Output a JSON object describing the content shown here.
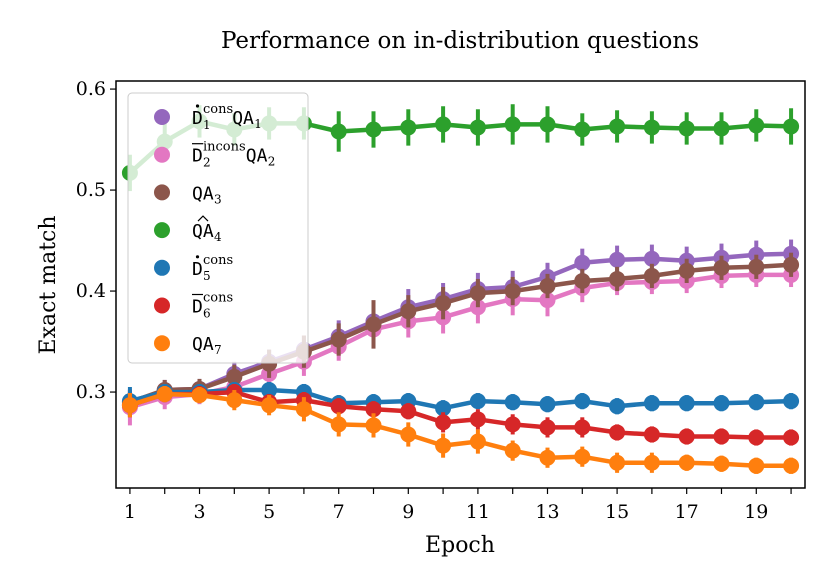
{
  "chart_data": {
    "type": "line",
    "title": "Performance on in-distribution questions",
    "xlabel": "Epoch",
    "ylabel": "Exact match",
    "x": [
      1,
      2,
      3,
      4,
      5,
      6,
      7,
      8,
      9,
      10,
      11,
      12,
      13,
      14,
      15,
      16,
      17,
      18,
      19,
      20
    ],
    "xticks": [
      "1",
      "3",
      "5",
      "7",
      "9",
      "11",
      "13",
      "15",
      "17",
      "19"
    ],
    "yticks": [
      "0.3",
      "0.4",
      "0.5",
      "0.6"
    ],
    "xlim": [
      0.6,
      20.4
    ],
    "ylim": [
      0.205,
      0.608
    ],
    "grid": false,
    "legend": "top-left",
    "series": [
      {
        "legend": {
          "base": "D",
          "accent": "dot",
          "sub": "1",
          "sup": "cons",
          "tail": "QA",
          "tail_sub": "1"
        },
        "color": "#9467bd",
        "values": [
          0.288,
          0.302,
          0.303,
          0.318,
          0.33,
          0.342,
          0.355,
          0.37,
          0.384,
          0.392,
          0.402,
          0.404,
          0.414,
          0.428,
          0.431,
          0.432,
          0.43,
          0.433,
          0.436,
          0.437
        ],
        "errors": [
          0.012,
          0.01,
          0.01,
          0.012,
          0.012,
          0.014,
          0.016,
          0.016,
          0.018,
          0.016,
          0.016,
          0.016,
          0.014,
          0.014,
          0.014,
          0.014,
          0.014,
          0.014,
          0.014,
          0.014
        ]
      },
      {
        "legend": {
          "base": "D",
          "accent": "bar",
          "sub": "2",
          "sup": "incons",
          "tail": "QA",
          "tail_sub": "2"
        },
        "color": "#e377c2",
        "values": [
          0.285,
          0.295,
          0.298,
          0.305,
          0.318,
          0.33,
          0.345,
          0.362,
          0.37,
          0.374,
          0.384,
          0.392,
          0.391,
          0.403,
          0.408,
          0.409,
          0.41,
          0.415,
          0.416,
          0.416
        ],
        "errors": [
          0.018,
          0.012,
          0.01,
          0.01,
          0.012,
          0.014,
          0.014,
          0.016,
          0.016,
          0.016,
          0.016,
          0.016,
          0.016,
          0.014,
          0.012,
          0.012,
          0.012,
          0.012,
          0.012,
          0.012
        ]
      },
      {
        "legend": {
          "base": "",
          "accent": "none",
          "sub": "",
          "sup": "",
          "tail": "QA",
          "tail_sub": "3"
        },
        "color": "#8c564b",
        "values": [
          0.29,
          0.302,
          0.303,
          0.315,
          0.328,
          0.34,
          0.352,
          0.367,
          0.38,
          0.388,
          0.398,
          0.4,
          0.405,
          0.41,
          0.412,
          0.415,
          0.42,
          0.423,
          0.424,
          0.426
        ],
        "errors": [
          0.012,
          0.01,
          0.01,
          0.012,
          0.014,
          0.016,
          0.016,
          0.024,
          0.016,
          0.016,
          0.014,
          0.014,
          0.012,
          0.012,
          0.012,
          0.012,
          0.012,
          0.012,
          0.012,
          0.012
        ]
      },
      {
        "legend": {
          "base": "",
          "accent": "hat",
          "sub": "",
          "sup": "",
          "tail": "QA",
          "tail_sub": "4"
        },
        "color": "#2ca02c",
        "values": [
          0.517,
          0.548,
          0.568,
          0.56,
          0.566,
          0.566,
          0.558,
          0.56,
          0.562,
          0.565,
          0.562,
          0.565,
          0.565,
          0.56,
          0.563,
          0.562,
          0.561,
          0.561,
          0.564,
          0.563
        ],
        "errors": [
          0.018,
          0.018,
          0.016,
          0.016,
          0.016,
          0.016,
          0.02,
          0.018,
          0.018,
          0.018,
          0.018,
          0.02,
          0.018,
          0.016,
          0.016,
          0.016,
          0.016,
          0.016,
          0.016,
          0.018
        ]
      },
      {
        "legend": {
          "base": "D",
          "accent": "dot",
          "sub": "5",
          "sup": "cons",
          "tail": "",
          "tail_sub": ""
        },
        "color": "#1f77b4",
        "values": [
          0.291,
          0.3,
          0.3,
          0.302,
          0.302,
          0.3,
          0.289,
          0.29,
          0.291,
          0.284,
          0.291,
          0.29,
          0.288,
          0.291,
          0.286,
          0.289,
          0.289,
          0.289,
          0.29,
          0.291
        ],
        "errors": [
          0.014,
          0.008,
          0.008,
          0.008,
          0.008,
          0.008,
          0.008,
          0.008,
          0.008,
          0.008,
          0.008,
          0.008,
          0.008,
          0.008,
          0.008,
          0.008,
          0.008,
          0.008,
          0.008,
          0.008
        ]
      },
      {
        "legend": {
          "base": "D",
          "accent": "bar",
          "sub": "6",
          "sup": "cons",
          "tail": "",
          "tail_sub": ""
        },
        "color": "#d62728",
        "values": [
          0.287,
          0.298,
          0.298,
          0.3,
          0.29,
          0.292,
          0.286,
          0.283,
          0.281,
          0.27,
          0.273,
          0.268,
          0.265,
          0.265,
          0.26,
          0.258,
          0.256,
          0.256,
          0.255,
          0.255
        ],
        "errors": [
          0.012,
          0.008,
          0.008,
          0.008,
          0.008,
          0.008,
          0.008,
          0.008,
          0.008,
          0.01,
          0.01,
          0.01,
          0.01,
          0.01,
          0.008,
          0.008,
          0.008,
          0.008,
          0.008,
          0.008
        ]
      },
      {
        "legend": {
          "base": "",
          "accent": "none",
          "sub": "",
          "sup": "",
          "tail": "QA",
          "tail_sub": "7"
        },
        "color": "#ff7f0e",
        "values": [
          0.287,
          0.298,
          0.297,
          0.292,
          0.287,
          0.283,
          0.268,
          0.267,
          0.258,
          0.247,
          0.251,
          0.242,
          0.235,
          0.236,
          0.23,
          0.23,
          0.23,
          0.229,
          0.227,
          0.227
        ],
        "errors": [
          0.012,
          0.008,
          0.008,
          0.01,
          0.01,
          0.012,
          0.012,
          0.012,
          0.012,
          0.012,
          0.012,
          0.01,
          0.01,
          0.01,
          0.01,
          0.01,
          0.008,
          0.008,
          0.008,
          0.008
        ]
      }
    ]
  }
}
